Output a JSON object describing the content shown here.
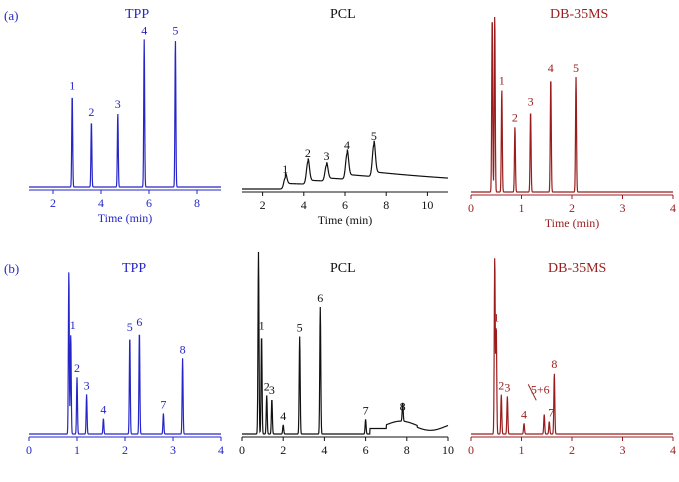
{
  "panel_labels": {
    "a": "(a)",
    "b": "(b)"
  },
  "colors": {
    "TPP": "#2626c8",
    "PCL": "#111111",
    "DB-35MS": "#9a1c1c"
  },
  "chart_data": [
    {
      "id": "a-TPP",
      "type": "line",
      "title": "TPP",
      "xlabel": "Time (min)",
      "xlim": [
        1,
        9
      ],
      "xticks": [
        2,
        4,
        6,
        8
      ],
      "ylim": [
        0,
        1
      ],
      "series": [
        {
          "name": "TPP",
          "peaks": [
            {
              "label": "1",
              "x": 2.8,
              "y": 0.59
            },
            {
              "label": "2",
              "x": 3.6,
              "y": 0.42
            },
            {
              "label": "3",
              "x": 4.7,
              "y": 0.47
            },
            {
              "label": "4",
              "x": 5.8,
              "y": 0.94
            },
            {
              "label": "5",
              "x": 7.1,
              "y": 0.94
            }
          ]
        }
      ]
    },
    {
      "id": "a-PCL",
      "type": "line",
      "title": "PCL",
      "xlabel": "Time (min)",
      "xlim": [
        1,
        11
      ],
      "xticks": [
        2,
        4,
        6,
        8,
        10
      ],
      "ylim": [
        0,
        1
      ],
      "series": [
        {
          "name": "PCL",
          "peaks": [
            {
              "label": "1",
              "x": 3.1,
              "y": 0.07
            },
            {
              "label": "2",
              "x": 4.2,
              "y": 0.14
            },
            {
              "label": "3",
              "x": 5.1,
              "y": 0.1
            },
            {
              "label": "4",
              "x": 6.1,
              "y": 0.16
            },
            {
              "label": "5",
              "x": 7.4,
              "y": 0.2
            }
          ]
        }
      ]
    },
    {
      "id": "a-DB35MS",
      "type": "line",
      "title": "DB-35MS",
      "xlabel": "Time (min)",
      "xlim": [
        0,
        4
      ],
      "xticks": [
        0,
        1,
        2,
        3,
        4
      ],
      "ylim": [
        0,
        1
      ],
      "series": [
        {
          "name": "DB-35MS",
          "peaks": [
            {
              "label": "",
              "x": 0.42,
              "y": 1.0
            },
            {
              "label": "",
              "x": 0.47,
              "y": 1.0
            },
            {
              "label": "1",
              "x": 0.61,
              "y": 0.58
            },
            {
              "label": "2",
              "x": 0.87,
              "y": 0.37
            },
            {
              "label": "3",
              "x": 1.18,
              "y": 0.46
            },
            {
              "label": "4",
              "x": 1.58,
              "y": 0.65
            },
            {
              "label": "5",
              "x": 2.08,
              "y": 0.65
            }
          ]
        }
      ]
    },
    {
      "id": "b-TPP",
      "type": "line",
      "title": "TPP",
      "xlabel": "",
      "xlim": [
        0,
        4
      ],
      "xticks": [
        0,
        1,
        2,
        3,
        4
      ],
      "ylim": [
        0,
        1
      ],
      "series": [
        {
          "name": "TPP",
          "peaks": [
            {
              "label": "",
              "x": 0.83,
              "y": 0.95
            },
            {
              "label": "1",
              "x": 0.87,
              "y": 0.58
            },
            {
              "label": "2",
              "x": 1.0,
              "y": 0.33
            },
            {
              "label": "3",
              "x": 1.2,
              "y": 0.23
            },
            {
              "label": "4",
              "x": 1.55,
              "y": 0.09
            },
            {
              "label": "5",
              "x": 2.1,
              "y": 0.57
            },
            {
              "label": "6",
              "x": 2.3,
              "y": 0.6
            },
            {
              "label": "7",
              "x": 2.8,
              "y": 0.12
            },
            {
              "label": "8",
              "x": 3.2,
              "y": 0.44
            }
          ]
        }
      ]
    },
    {
      "id": "b-PCL",
      "type": "line",
      "title": "PCL",
      "xlabel": "",
      "xlim": [
        0,
        10
      ],
      "xticks": [
        0,
        2,
        4,
        6,
        8,
        10
      ],
      "ylim": [
        0,
        1
      ],
      "series": [
        {
          "name": "PCL",
          "peaks": [
            {
              "label": "",
              "x": 0.8,
              "y": 0.99
            },
            {
              "label": "1",
              "x": 0.95,
              "y": 0.54
            },
            {
              "label": "2",
              "x": 1.2,
              "y": 0.21
            },
            {
              "label": "3",
              "x": 1.45,
              "y": 0.19
            },
            {
              "label": "4",
              "x": 2.0,
              "y": 0.05
            },
            {
              "label": "5",
              "x": 2.8,
              "y": 0.53
            },
            {
              "label": "6",
              "x": 3.8,
              "y": 0.69
            },
            {
              "label": "7",
              "x": 6.0,
              "y": 0.08
            },
            {
              "label": "8",
              "x": 7.8,
              "y": 0.1
            }
          ]
        }
      ]
    },
    {
      "id": "b-DB35MS",
      "type": "line",
      "title": "DB-35MS",
      "xlabel": "",
      "xlim": [
        0,
        4
      ],
      "xticks": [
        0,
        1,
        2,
        3,
        4
      ],
      "ylim": [
        0,
        1
      ],
      "series": [
        {
          "name": "DB-35MS",
          "peaks": [
            {
              "label": "",
              "x": 0.47,
              "y": 0.99
            },
            {
              "label": "1",
              "x": 0.5,
              "y": 0.6
            },
            {
              "label": "2",
              "x": 0.6,
              "y": 0.22
            },
            {
              "label": "3",
              "x": 0.72,
              "y": 0.21
            },
            {
              "label": "4",
              "x": 1.05,
              "y": 0.06
            },
            {
              "label": "5+6",
              "x": 1.45,
              "y": 0.11
            },
            {
              "label": "7",
              "x": 1.55,
              "y": 0.07
            },
            {
              "label": "8",
              "x": 1.65,
              "y": 0.34
            }
          ]
        }
      ]
    }
  ]
}
